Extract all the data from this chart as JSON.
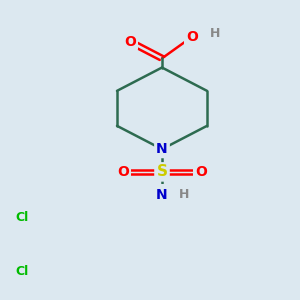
{
  "background_color": "#dce8f0",
  "bond_color": "#2d6b50",
  "bond_width": 1.8,
  "atom_colors": {
    "O": "#ff0000",
    "N": "#0000cc",
    "S": "#cccc00",
    "Cl": "#00bb00",
    "H": "#888888",
    "C": "#2d6b50"
  },
  "figsize": [
    3.0,
    3.0
  ],
  "dpi": 100
}
